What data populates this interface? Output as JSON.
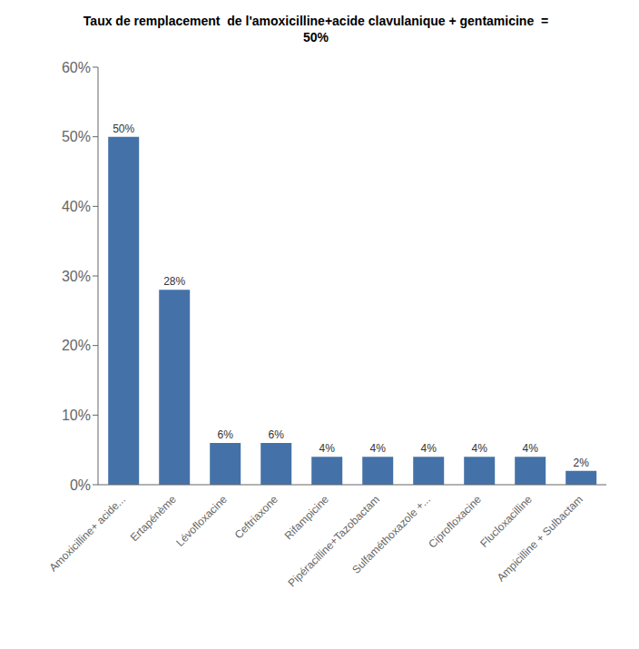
{
  "chart_data": {
    "type": "bar",
    "title": "Taux de remplacement  de l'amoxicilline+acide clavulanique + gentamicine  =\n50%",
    "categories": [
      "Amoxicilline+ acide...",
      "Ertapénème",
      "Lévofloxacine",
      "Ceftriaxone",
      "Rifampicine",
      "Pipéracilline+Tazobactam",
      "Sulfaméthoxazole +...",
      "Ciprofloxacine",
      "Flucloxacilline",
      "Ampicilline + Sulbactam"
    ],
    "values": [
      50,
      28,
      6,
      6,
      4,
      4,
      4,
      4,
      4,
      2
    ],
    "value_labels": [
      "50%",
      "28%",
      "6%",
      "6%",
      "4%",
      "4%",
      "4%",
      "4%",
      "4%",
      "2%"
    ],
    "data_labels": true,
    "color": "#4472A8",
    "ylim": [
      0,
      60
    ],
    "yticks": [
      {
        "value": 0,
        "label": "0%"
      },
      {
        "value": 10,
        "label": "10%"
      },
      {
        "value": 20,
        "label": "20%"
      },
      {
        "value": 30,
        "label": "30%"
      },
      {
        "value": 40,
        "label": "40%"
      },
      {
        "value": 50,
        "label": "50%"
      },
      {
        "value": 60,
        "label": "60%"
      }
    ],
    "grid": false
  }
}
